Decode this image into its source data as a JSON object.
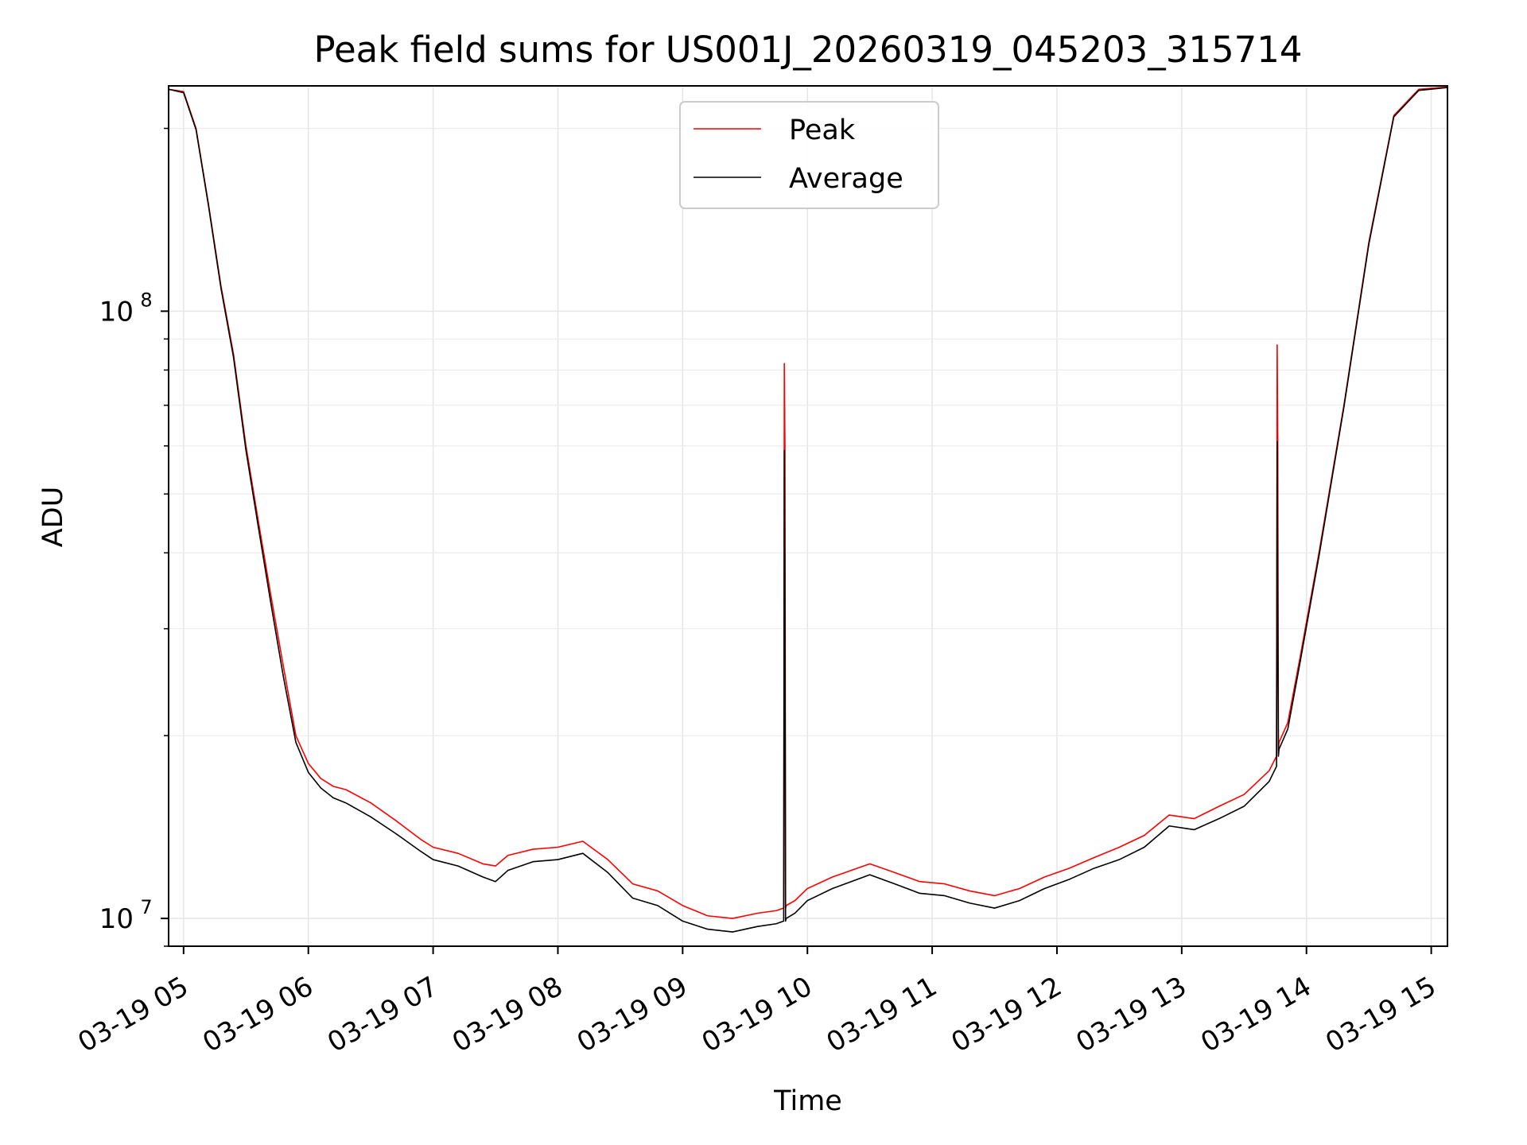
{
  "chart_data": {
    "type": "line",
    "title": "Peak field sums for US001J_20260319_045203_315714",
    "xlabel": "Time",
    "ylabel": "ADU",
    "yscale": "log",
    "xlim": [
      4.88,
      15.13
    ],
    "ylim": [
      9000000.0,
      235000000.0
    ],
    "grid": true,
    "legend": {
      "location": "top-center",
      "entries": [
        {
          "name": "Peak",
          "color": "#ff0000"
        },
        {
          "name": "Average",
          "color": "#000000"
        }
      ]
    },
    "x_ticks": [
      {
        "value": 5,
        "label": "03-19 05"
      },
      {
        "value": 6,
        "label": "03-19 06"
      },
      {
        "value": 7,
        "label": "03-19 07"
      },
      {
        "value": 8,
        "label": "03-19 08"
      },
      {
        "value": 9,
        "label": "03-19 09"
      },
      {
        "value": 10,
        "label": "03-19 10"
      },
      {
        "value": 11,
        "label": "03-19 11"
      },
      {
        "value": 12,
        "label": "03-19 12"
      },
      {
        "value": 13,
        "label": "03-19 13"
      },
      {
        "value": 14,
        "label": "03-19 14"
      },
      {
        "value": 15,
        "label": "03-19 15"
      }
    ],
    "y_ticks": [
      {
        "value": 10000000,
        "base": "10",
        "exp": "7"
      },
      {
        "value": 100000000,
        "base": "10",
        "exp": "8"
      }
    ],
    "series": [
      {
        "name": "Peak",
        "color": "#ff0000",
        "x": [
          4.88,
          5.0,
          5.1,
          5.2,
          5.3,
          5.4,
          5.5,
          5.6,
          5.7,
          5.8,
          5.9,
          6.0,
          6.1,
          6.2,
          6.3,
          6.5,
          6.7,
          6.9,
          7.0,
          7.2,
          7.4,
          7.5,
          7.6,
          7.8,
          8.0,
          8.2,
          8.4,
          8.6,
          8.8,
          9.0,
          9.2,
          9.4,
          9.6,
          9.75,
          9.81,
          9.815,
          9.82,
          9.825,
          9.83,
          9.9,
          10.0,
          10.2,
          10.5,
          10.7,
          10.9,
          11.1,
          11.3,
          11.5,
          11.7,
          11.9,
          12.1,
          12.3,
          12.5,
          12.7,
          12.9,
          13.1,
          13.3,
          13.5,
          13.7,
          13.76,
          13.765,
          13.77,
          13.775,
          13.78,
          13.85,
          13.95,
          14.1,
          14.3,
          14.5,
          14.7,
          14.9,
          15.13
        ],
        "y": [
          232000000,
          230000000,
          200000000,
          150000000,
          110000000,
          85000000,
          60000000,
          45000000,
          34000000,
          26000000,
          20000000,
          18000000,
          17000000,
          16500000,
          16300000,
          15500000,
          14500000,
          13500000,
          13100000,
          12800000,
          12300000,
          12200000,
          12700000,
          13000000,
          13100000,
          13400000,
          12500000,
          11400000,
          11100000,
          10500000,
          10100000,
          10000000,
          10200000,
          10300000,
          10400000,
          82000000,
          60000000,
          10400000,
          10500000,
          10700000,
          11200000,
          11700000,
          12300000,
          11900000,
          11500000,
          11400000,
          11100000,
          10900000,
          11200000,
          11700000,
          12100000,
          12600000,
          13100000,
          13700000,
          14800000,
          14600000,
          15300000,
          16000000,
          17500000,
          18500000,
          88000000,
          60000000,
          19000000,
          19500000,
          21000000,
          27000000,
          40000000,
          70000000,
          130000000,
          210000000,
          232000000,
          234000000
        ]
      },
      {
        "name": "Average",
        "color": "#000000",
        "x": [
          4.88,
          5.0,
          5.1,
          5.2,
          5.3,
          5.4,
          5.5,
          5.6,
          5.7,
          5.8,
          5.9,
          6.0,
          6.1,
          6.2,
          6.3,
          6.5,
          6.7,
          6.9,
          7.0,
          7.2,
          7.4,
          7.5,
          7.6,
          7.8,
          8.0,
          8.2,
          8.4,
          8.6,
          8.8,
          9.0,
          9.2,
          9.4,
          9.6,
          9.75,
          9.81,
          9.815,
          9.82,
          9.825,
          9.83,
          9.9,
          10.0,
          10.2,
          10.5,
          10.7,
          10.9,
          11.1,
          11.3,
          11.5,
          11.7,
          11.9,
          12.1,
          12.3,
          12.5,
          12.7,
          12.9,
          13.1,
          13.3,
          13.5,
          13.7,
          13.76,
          13.765,
          13.77,
          13.775,
          13.78,
          13.85,
          13.95,
          14.1,
          14.3,
          14.5,
          14.7,
          14.9,
          15.13
        ],
        "y": [
          232000000,
          229000000,
          199000000,
          149000000,
          109000000,
          84000000,
          59000000,
          44000000,
          33000000,
          25000000,
          19500000,
          17400000,
          16400000,
          15800000,
          15500000,
          14700000,
          13800000,
          12900000,
          12500000,
          12200000,
          11700000,
          11500000,
          12000000,
          12400000,
          12500000,
          12800000,
          11900000,
          10800000,
          10500000,
          9900000,
          9600000,
          9500000,
          9700000,
          9800000,
          9900000,
          59000000,
          30000000,
          9900000,
          10000000,
          10200000,
          10700000,
          11200000,
          11800000,
          11400000,
          11000000,
          10900000,
          10600000,
          10400000,
          10700000,
          11200000,
          11600000,
          12100000,
          12500000,
          13100000,
          14200000,
          14000000,
          14600000,
          15300000,
          16800000,
          17800000,
          61000000,
          30000000,
          18500000,
          19000000,
          20500000,
          26500000,
          39500000,
          69500000,
          129000000,
          209000000,
          231000000,
          233500000
        ]
      }
    ]
  }
}
